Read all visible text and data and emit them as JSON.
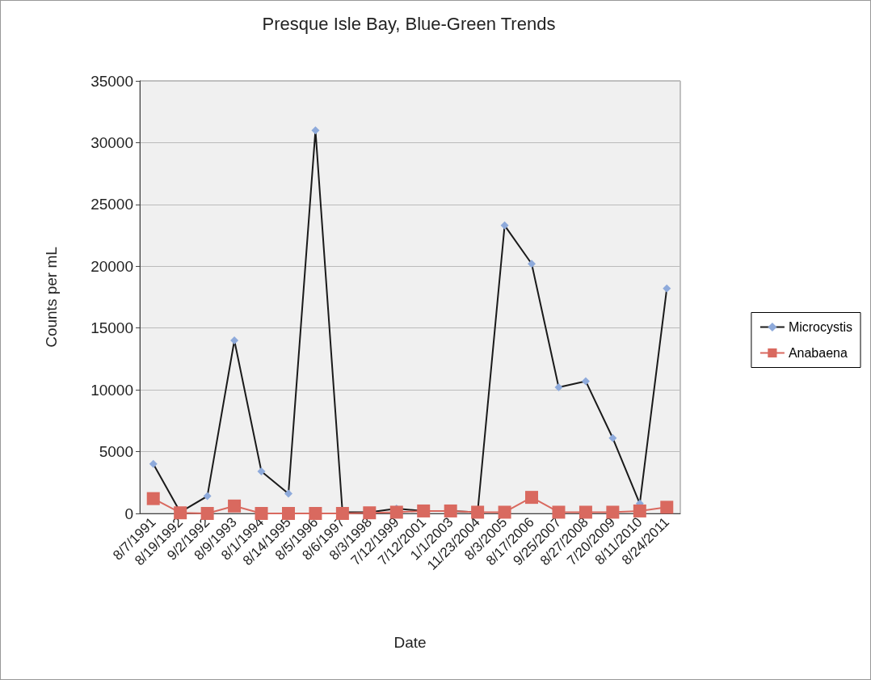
{
  "chart_data": {
    "type": "line",
    "title": "Presque Isle Bay, Blue-Green Trends",
    "xlabel": "Date",
    "ylabel": "Counts per mL",
    "categories": [
      "8/7/1991",
      "8/19/1992",
      "9/2/1992",
      "8/9/1993",
      "8/1/1994",
      "8/14/1995",
      "8/5/1996",
      "8/6/1997",
      "8/3/1998",
      "7/12/1999",
      "7/12/2001",
      "1/1/2003",
      "11/23/2004",
      "8/3/2005",
      "8/17/2006",
      "9/25/2007",
      "8/27/2008",
      "7/20/2009",
      "8/11/2010",
      "8/24/2011"
    ],
    "series": [
      {
        "name": "Microcystis",
        "color": "#8eaadb",
        "marker": "diamond",
        "values": [
          4000,
          100,
          1400,
          14000,
          3400,
          1600,
          31000,
          100,
          100,
          400,
          200,
          200,
          100,
          23300,
          20200,
          10200,
          10700,
          6100,
          800,
          18200
        ]
      },
      {
        "name": "Anabaena",
        "color": "#d9695f",
        "marker": "square",
        "values": [
          1200,
          50,
          0,
          600,
          0,
          0,
          0,
          0,
          50,
          100,
          200,
          200,
          100,
          100,
          1300,
          100,
          100,
          100,
          200,
          500
        ]
      }
    ],
    "ylim": [
      0,
      35000
    ],
    "yticks": [
      0,
      5000,
      10000,
      15000,
      20000,
      25000,
      30000,
      35000
    ],
    "grid": "y",
    "legend": "right"
  }
}
